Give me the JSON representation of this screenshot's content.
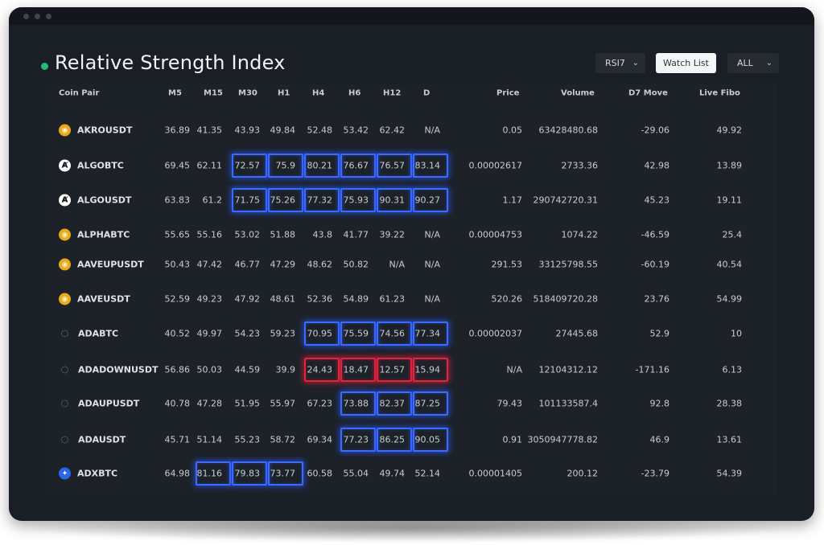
{
  "window": {
    "controls": [
      "close",
      "minimize",
      "maximize"
    ]
  },
  "header": {
    "title": "Relative Strength Index",
    "status_color": "#27b978",
    "indicator_select": {
      "value": "RSI7"
    },
    "watch_list_button": "Watch List",
    "filter_select": {
      "value": "ALL"
    }
  },
  "table": {
    "columns": [
      "Coin Pair",
      "M5",
      "M15",
      "M30",
      "H1",
      "H4",
      "H6",
      "H12",
      "D",
      "Price",
      "Volume",
      "D7 Move",
      "Live Fibo"
    ],
    "rows": [
      {
        "icon": "gold-coin-icon",
        "pair": "AKROUSDT",
        "m5": "36.89",
        "m15": "41.35",
        "m30": "43.93",
        "h1": "49.84",
        "h4": "52.48",
        "h6": "53.42",
        "h12": "62.42",
        "d": "N/A",
        "price": "0.05",
        "volume": "63428480.68",
        "d7": "-29.06",
        "fibo": "49.92"
      },
      {
        "icon": "algorand-icon",
        "pair": "ALGOBTC",
        "m5": "69.45",
        "m15": "62.11",
        "m30": "72.57",
        "h1": "75.9",
        "h4": "80.21",
        "h6": "76.67",
        "h12": "76.57",
        "d": "83.14",
        "price": "0.00002617",
        "volume": "2733.36",
        "d7": "42.98",
        "fibo": "13.89"
      },
      {
        "icon": "algorand-icon",
        "pair": "ALGOUSDT",
        "m5": "63.83",
        "m15": "61.2",
        "m30": "71.75",
        "h1": "75.26",
        "h4": "77.32",
        "h6": "75.93",
        "h12": "90.31",
        "d": "90.27",
        "price": "1.17",
        "volume": "290742720.31",
        "d7": "45.23",
        "fibo": "19.11"
      },
      {
        "icon": "gold-coin-icon",
        "pair": "ALPHABTC",
        "m5": "55.65",
        "m15": "55.16",
        "m30": "53.02",
        "h1": "51.88",
        "h4": "43.8",
        "h6": "41.77",
        "h12": "39.22",
        "d": "N/A",
        "price": "0.00004753",
        "volume": "1074.22",
        "d7": "-46.59",
        "fibo": "25.4"
      },
      {
        "icon": "gold-coin-icon",
        "pair": "AAVEUPUSDT",
        "m5": "50.43",
        "m15": "47.42",
        "m30": "46.77",
        "h1": "47.29",
        "h4": "48.62",
        "h6": "50.82",
        "h12": "N/A",
        "d": "N/A",
        "price": "291.53",
        "volume": "33125798.55",
        "d7": "-60.19",
        "fibo": "40.54"
      },
      {
        "icon": "gold-coin-icon",
        "pair": "AAVEUSDT",
        "m5": "52.59",
        "m15": "49.23",
        "m30": "47.92",
        "h1": "48.61",
        "h4": "52.36",
        "h6": "54.89",
        "h12": "61.23",
        "d": "N/A",
        "price": "520.26",
        "volume": "518409720.28",
        "d7": "23.76",
        "fibo": "54.99"
      },
      {
        "icon": "cardano-icon",
        "pair": "ADABTC",
        "m5": "40.52",
        "m15": "49.97",
        "m30": "54.23",
        "h1": "59.23",
        "h4": "70.95",
        "h6": "75.59",
        "h12": "74.56",
        "d": "77.34",
        "price": "0.00002037",
        "volume": "27445.68",
        "d7": "52.9",
        "fibo": "10"
      },
      {
        "icon": "cardano-icon",
        "pair": "ADADOWNUSDT",
        "m5": "56.86",
        "m15": "50.03",
        "m30": "44.59",
        "h1": "39.9",
        "h4": "24.43",
        "h6": "18.47",
        "h12": "12.57",
        "d": "15.94",
        "price": "N/A",
        "volume": "12104312.12",
        "d7": "-171.16",
        "fibo": "6.13"
      },
      {
        "icon": "cardano-icon",
        "pair": "ADAUPUSDT",
        "m5": "40.78",
        "m15": "47.28",
        "m30": "51.95",
        "h1": "55.97",
        "h4": "67.23",
        "h6": "73.88",
        "h12": "82.37",
        "d": "87.25",
        "price": "79.43",
        "volume": "101133587.4",
        "d7": "92.8",
        "fibo": "28.38"
      },
      {
        "icon": "cardano-icon",
        "pair": "ADAUSDT",
        "m5": "45.71",
        "m15": "51.14",
        "m30": "55.23",
        "h1": "58.72",
        "h4": "69.34",
        "h6": "77.23",
        "h12": "86.25",
        "d": "90.05",
        "price": "0.91",
        "volume": "3050947778.82",
        "d7": "46.9",
        "fibo": "13.61"
      },
      {
        "icon": "adx-icon",
        "pair": "ADXBTC",
        "m5": "64.98",
        "m15": "81.16",
        "m30": "79.83",
        "h1": "73.77",
        "h4": "60.58",
        "h6": "55.04",
        "h12": "49.74",
        "d": "52.14",
        "price": "0.00001405",
        "volume": "200.12",
        "d7": "-23.79",
        "fibo": "54.39"
      }
    ],
    "highlights": [
      {
        "row": 1,
        "from": "m30",
        "to": "d",
        "level": "overbought"
      },
      {
        "row": 2,
        "from": "m30",
        "to": "d",
        "level": "overbought"
      },
      {
        "row": 6,
        "from": "h4",
        "to": "d",
        "level": "overbought"
      },
      {
        "row": 7,
        "from": "h4",
        "to": "d",
        "level": "oversold"
      },
      {
        "row": 8,
        "from": "h6",
        "to": "d",
        "level": "overbought"
      },
      {
        "row": 9,
        "from": "h6",
        "to": "d",
        "level": "overbought"
      },
      {
        "row": 10,
        "from": "m15",
        "to": "h1",
        "level": "overbought"
      }
    ],
    "colors": {
      "overbought": "#3c6cff",
      "oversold": "#e0243c"
    }
  }
}
